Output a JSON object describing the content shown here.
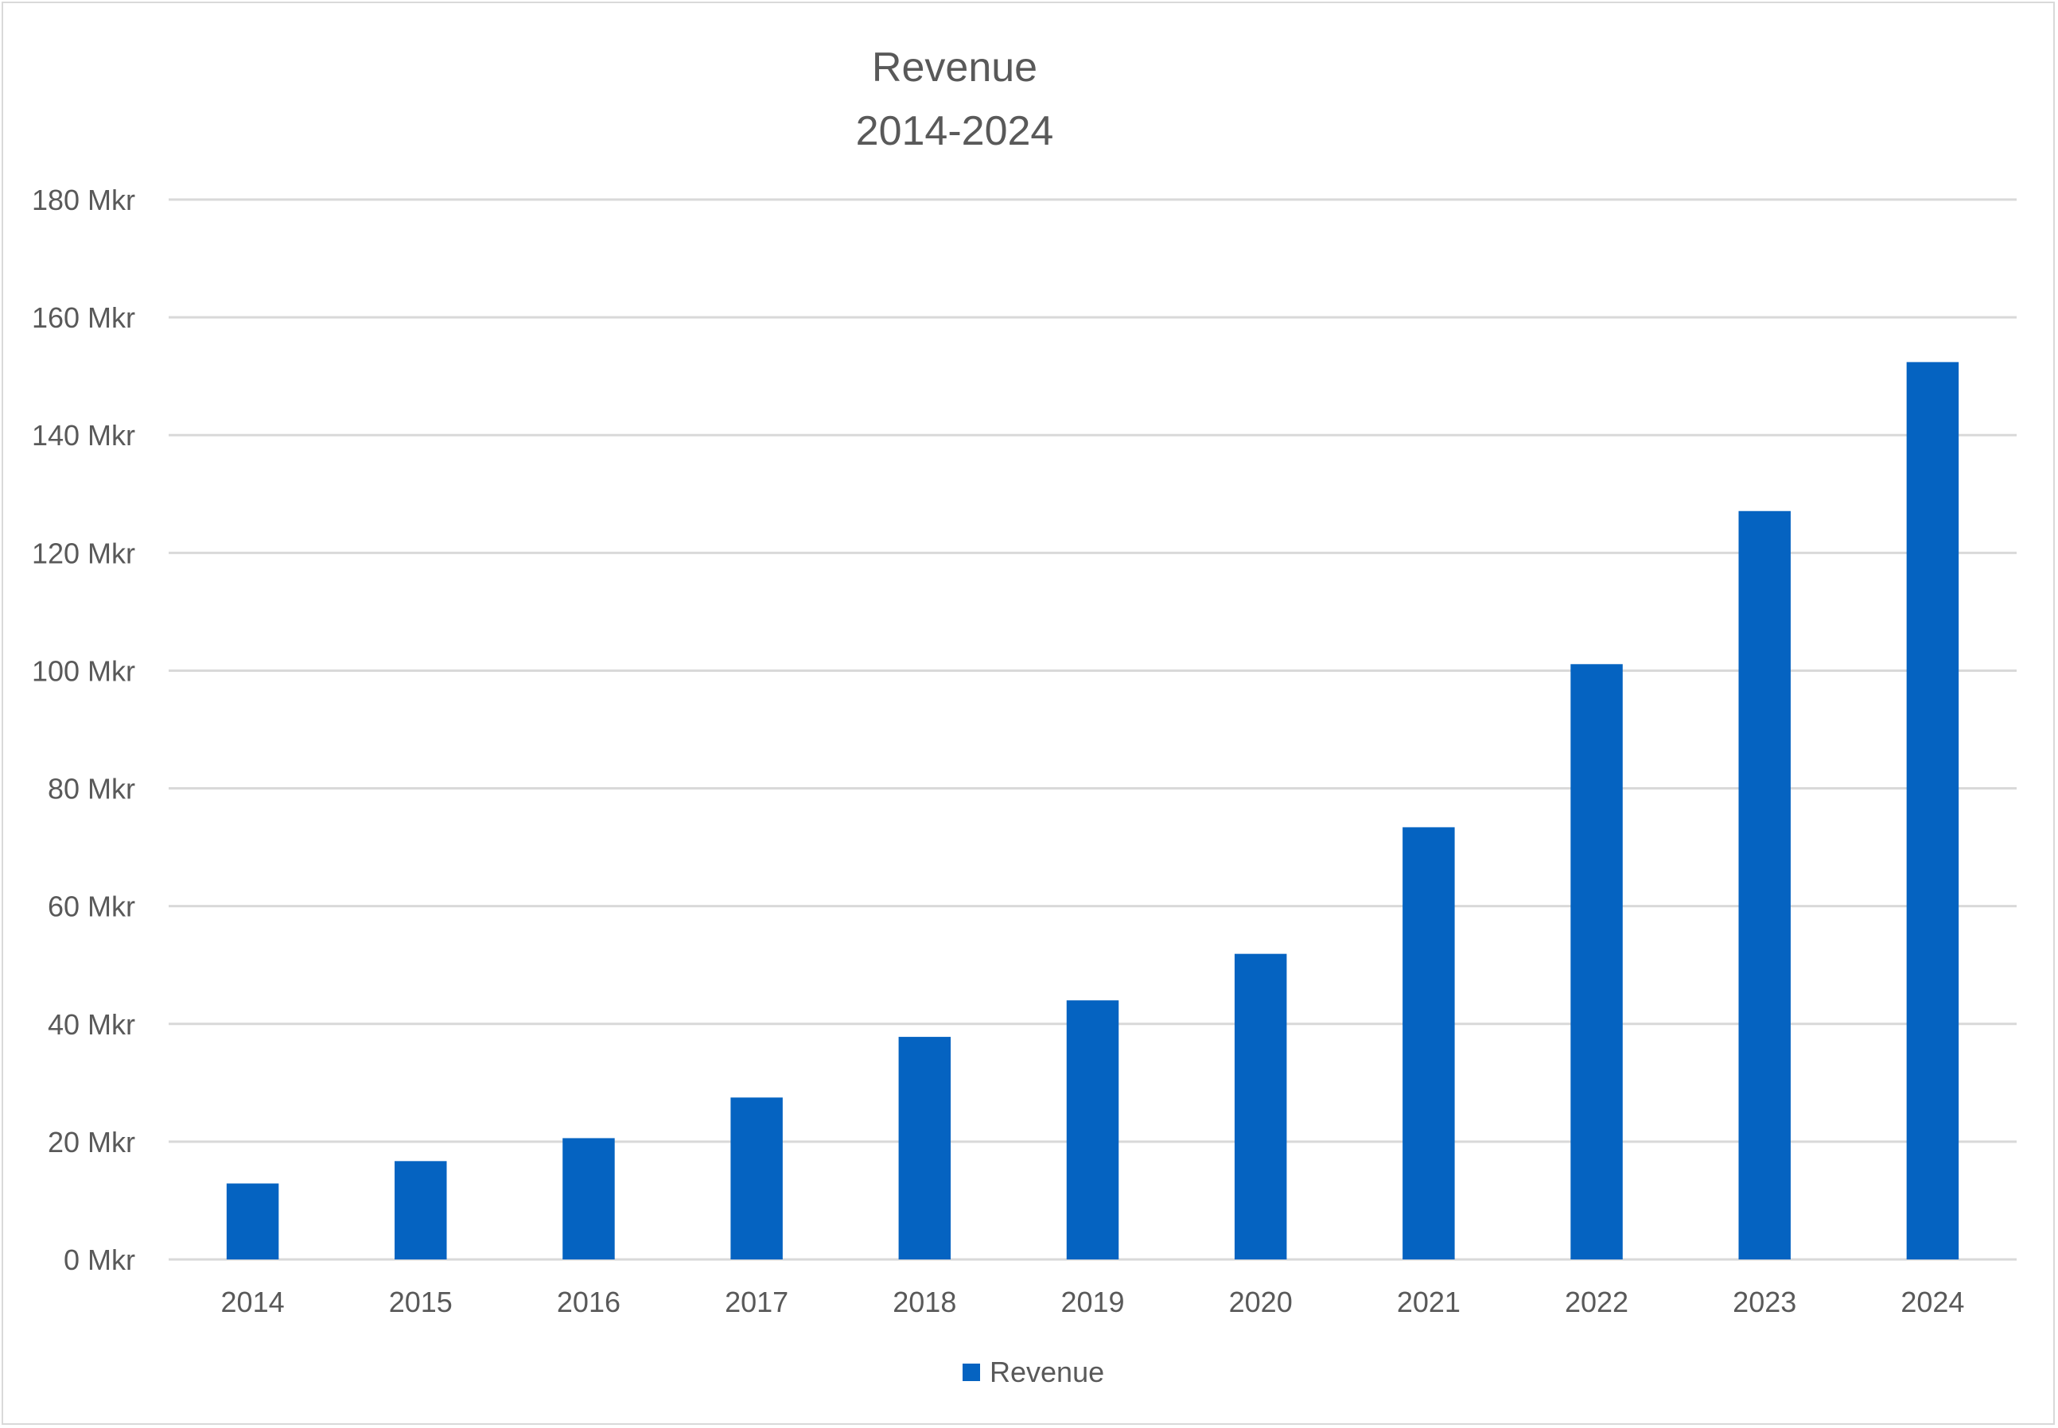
{
  "chart_data": {
    "type": "bar",
    "title": "Revenue",
    "subtitle": "2014-2024",
    "categories": [
      "2014",
      "2015",
      "2016",
      "2017",
      "2018",
      "2019",
      "2020",
      "2021",
      "2022",
      "2023",
      "2024"
    ],
    "series": [
      {
        "name": "Revenue",
        "color": "#0563c1",
        "values": [
          12.9,
          16.7,
          20.6,
          27.5,
          37.8,
          44.0,
          51.9,
          73.4,
          101.1,
          127.1,
          152.4
        ]
      }
    ],
    "ylim": [
      0,
      180
    ],
    "yticks": [
      0,
      20,
      40,
      60,
      80,
      100,
      120,
      140,
      160,
      180
    ],
    "ytick_suffix": " Mkr",
    "xlabel": "",
    "ylabel": "",
    "grid": true,
    "legend": "bottom"
  }
}
